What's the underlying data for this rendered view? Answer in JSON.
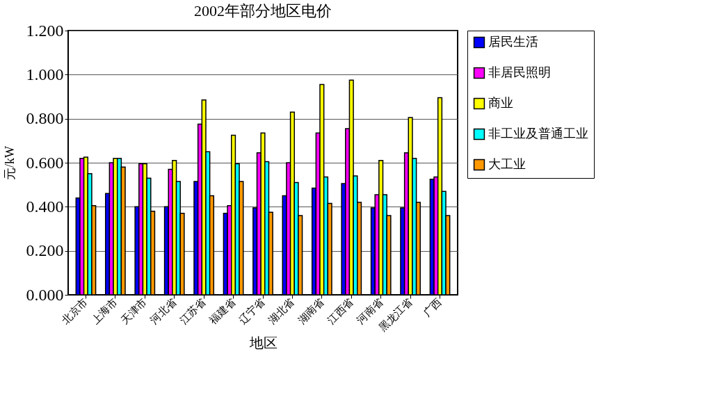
{
  "chart_data": {
    "type": "bar",
    "title": "2002年部分地区电价",
    "xlabel": "地区",
    "ylabel": "元/kW",
    "categories": [
      "北京市",
      "上海市",
      "天津市",
      "河北省",
      "江苏省",
      "福建省",
      "辽宁省",
      "湖北省",
      "湖南省",
      "江西省",
      "河南省",
      "黑龙江省",
      "广西"
    ],
    "series": [
      {
        "name": "居民生活",
        "color": "#0000ff",
        "values": [
          0.44,
          0.46,
          0.4,
          0.4,
          0.515,
          0.37,
          0.395,
          0.45,
          0.485,
          0.505,
          0.395,
          0.395,
          0.525
        ]
      },
      {
        "name": "非居民照明",
        "color": "#ff00ff",
        "values": [
          0.62,
          0.6,
          0.595,
          0.57,
          0.775,
          0.405,
          0.645,
          0.6,
          0.735,
          0.755,
          0.455,
          0.645,
          0.535
        ]
      },
      {
        "name": "商业",
        "color": "#ffff00",
        "values": [
          0.625,
          0.62,
          0.595,
          0.61,
          0.885,
          0.725,
          0.735,
          0.83,
          0.955,
          0.975,
          0.61,
          0.805,
          0.895
        ]
      },
      {
        "name": "非工业及普通工业",
        "color": "#00ffff",
        "values": [
          0.55,
          0.62,
          0.53,
          0.515,
          0.65,
          0.595,
          0.605,
          0.51,
          0.535,
          0.54,
          0.455,
          0.62,
          0.47
        ]
      },
      {
        "name": "大工业",
        "color": "#ff9900",
        "values": [
          0.405,
          0.58,
          0.38,
          0.37,
          0.45,
          0.515,
          0.375,
          0.36,
          0.415,
          0.42,
          0.36,
          0.42,
          0.36
        ]
      }
    ],
    "ylim": [
      0,
      1.2
    ],
    "yticks": [
      {
        "value": 0,
        "label": "0.000"
      },
      {
        "value": 0.2,
        "label": "0.200"
      },
      {
        "value": 0.4,
        "label": "0.400"
      },
      {
        "value": 0.6,
        "label": "0.600"
      },
      {
        "value": 0.8,
        "label": "0.800"
      },
      {
        "value": 1.0,
        "label": "1.000"
      },
      {
        "value": 1.2,
        "label": "1.200"
      }
    ],
    "grid": "y",
    "legend": "right"
  }
}
